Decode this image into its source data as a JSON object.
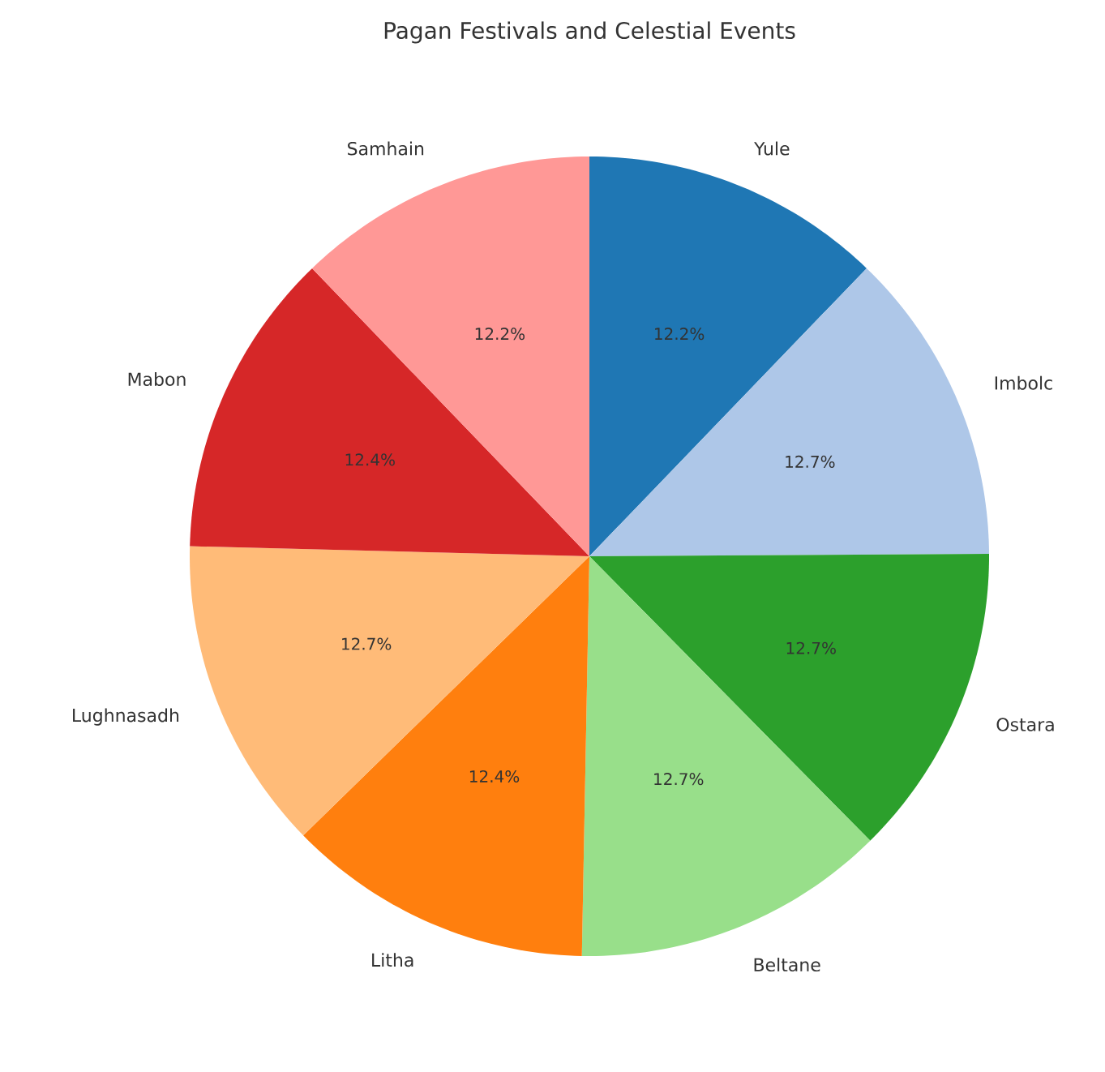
{
  "chart_data": {
    "type": "pie",
    "title": "Pagan Festivals and Celestial Events",
    "categories": [
      "Yule",
      "Imbolc",
      "Ostara",
      "Beltane",
      "Litha",
      "Lughnasadh",
      "Mabon",
      "Samhain"
    ],
    "values": [
      12.2,
      12.7,
      12.7,
      12.7,
      12.4,
      12.7,
      12.4,
      12.2
    ],
    "colors": [
      "#1f77b4",
      "#aec7e8",
      "#2ca02c",
      "#98df8a",
      "#ff7f0e",
      "#ffbb78",
      "#d62728",
      "#ff9896"
    ],
    "value_labels": [
      "12.2%",
      "12.7%",
      "12.7%",
      "12.7%",
      "12.4%",
      "12.7%",
      "12.4%",
      "12.2%"
    ]
  }
}
